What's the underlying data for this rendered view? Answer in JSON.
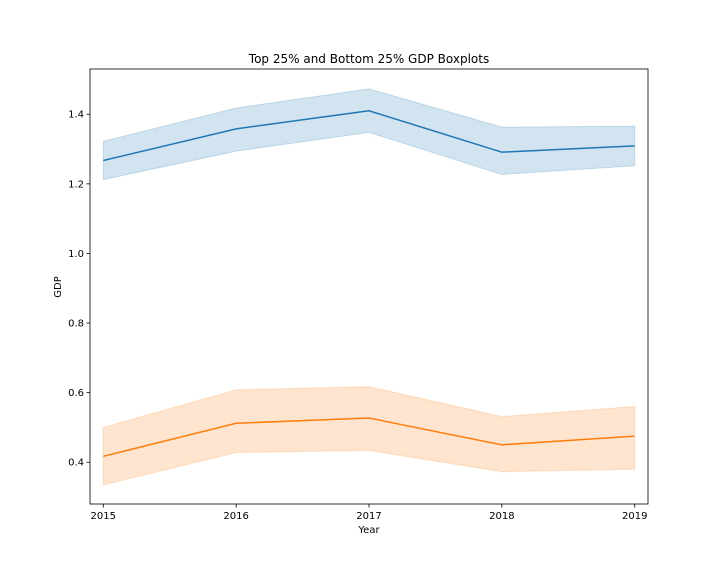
{
  "chart_data": {
    "type": "line",
    "title": "Top 25% and Bottom 25% GDP Boxplots",
    "xlabel": "Year",
    "ylabel": "GDP",
    "x": [
      "2015",
      "2016",
      "2017",
      "2018",
      "2019"
    ],
    "xlim": [
      2014.9,
      2019.1
    ],
    "ylim": [
      0.28,
      1.53
    ],
    "yticks": [
      "0.4",
      "0.6",
      "0.8",
      "1.0",
      "1.2",
      "1.4"
    ],
    "grid": false,
    "legend": "none",
    "series": [
      {
        "color": "#1f77b4",
        "values": [
          1.267,
          1.358,
          1.41,
          1.291,
          1.309
        ],
        "lower": [
          1.212,
          1.294,
          1.348,
          1.227,
          1.252
        ],
        "upper": [
          1.322,
          1.418,
          1.473,
          1.363,
          1.366
        ]
      },
      {
        "color": "#ff7f0e",
        "values": [
          0.417,
          0.512,
          0.527,
          0.45,
          0.475
        ],
        "lower": [
          0.335,
          0.428,
          0.434,
          0.373,
          0.38
        ],
        "upper": [
          0.5,
          0.608,
          0.617,
          0.531,
          0.56
        ]
      }
    ]
  }
}
